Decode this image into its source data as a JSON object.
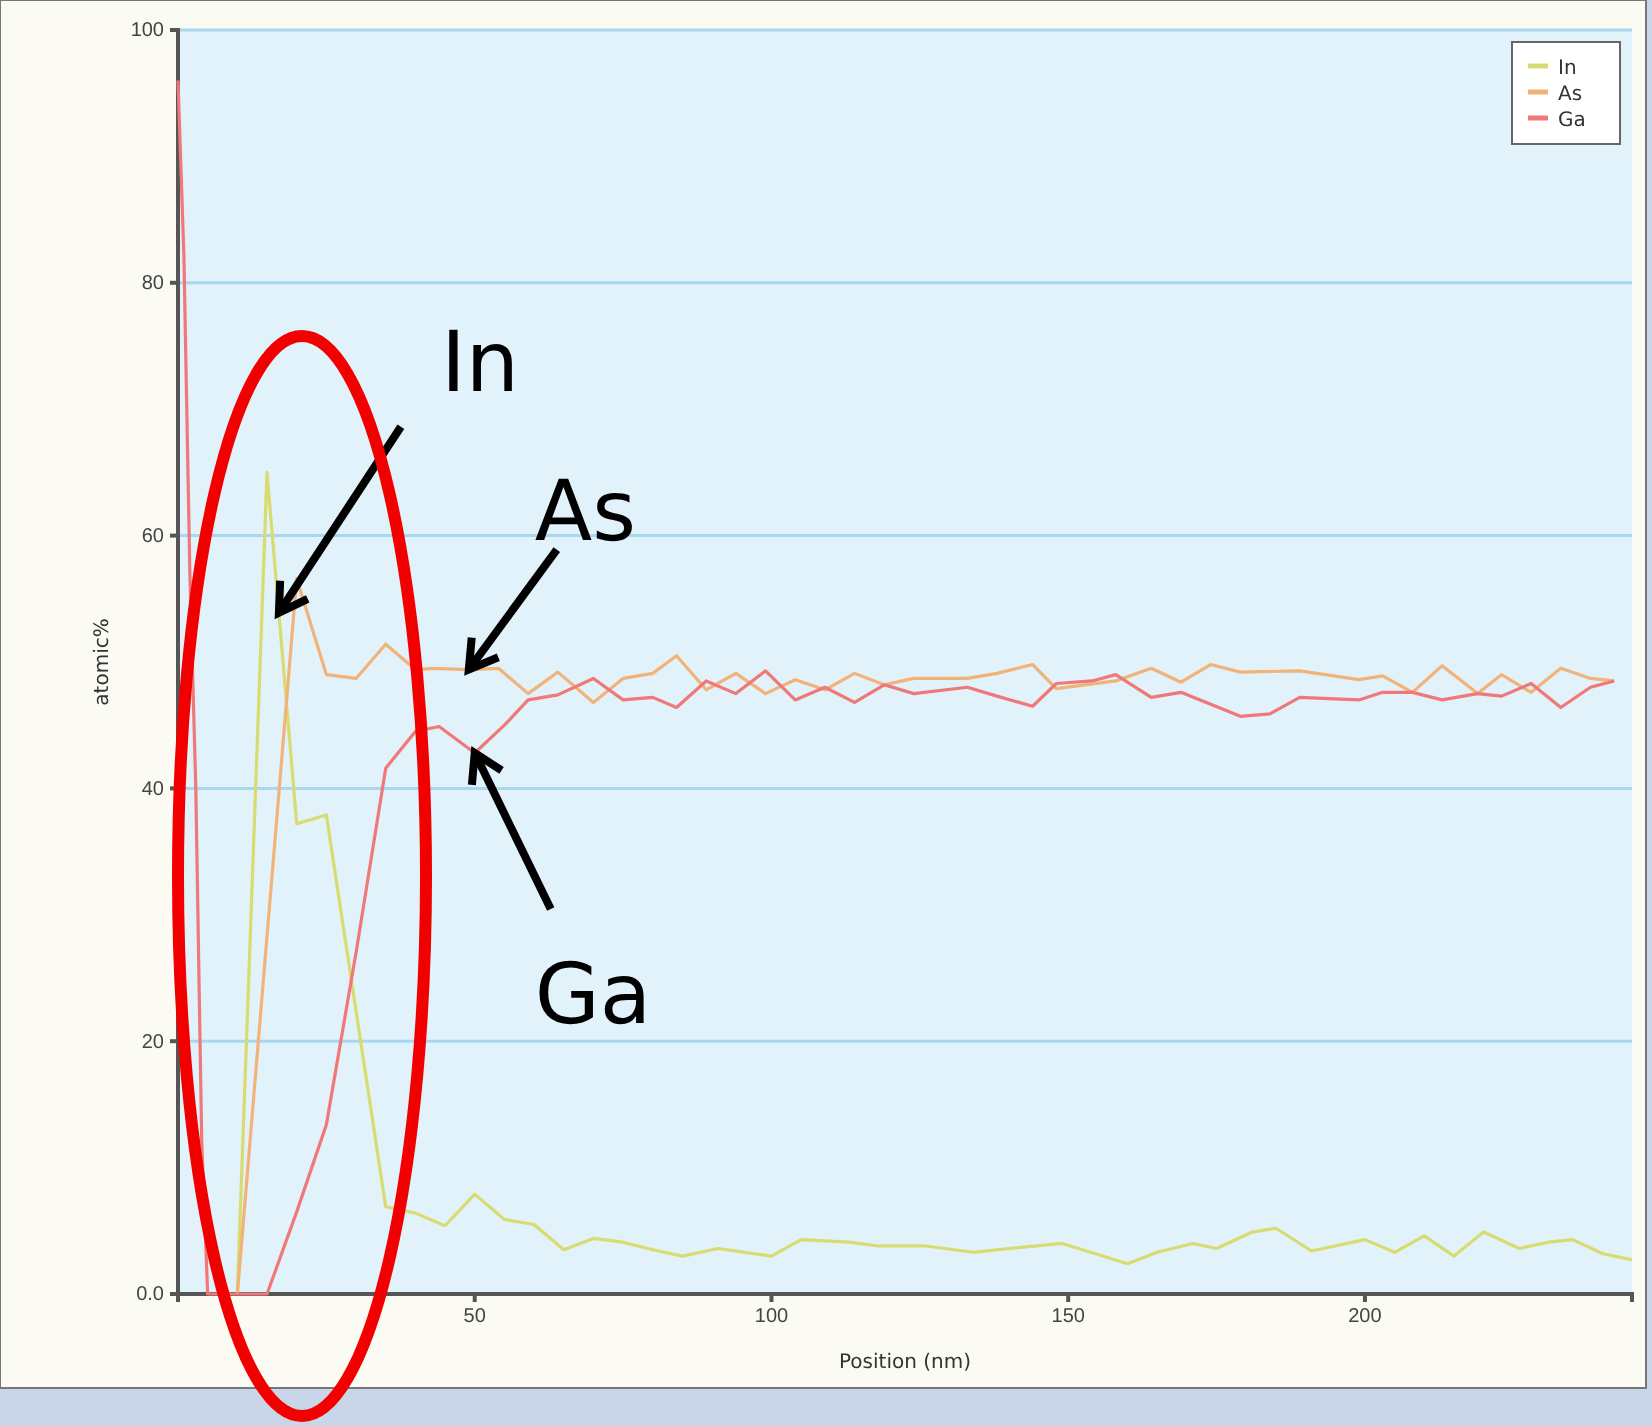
{
  "chart_data": {
    "type": "line",
    "xlabel": "Position (nm)",
    "ylabel": "atomic%",
    "xlim": [
      0,
      245
    ],
    "xticks": [
      50,
      100,
      150,
      200
    ],
    "ylim": [
      0,
      100
    ],
    "yticks": [
      {
        "value": 0,
        "label": "0.0"
      },
      20,
      40,
      60,
      80,
      100
    ],
    "grid": "y",
    "legend": "top right",
    "marker": "none",
    "line_style": "solid",
    "series": [
      {
        "name": "In",
        "color": "#d8dc70",
        "x": [
          10,
          15,
          20,
          25,
          35,
          40,
          45,
          50,
          55,
          60,
          65,
          70,
          75,
          80,
          85,
          91,
          100,
          105,
          113,
          118,
          126,
          134,
          140,
          149,
          160,
          165,
          171,
          175,
          181,
          185,
          191,
          200,
          205,
          210,
          215,
          220,
          226,
          231,
          235,
          240,
          245
        ],
        "values": [
          0,
          65,
          37.2,
          37.9,
          6.9,
          6.4,
          5.4,
          7.9,
          5.9,
          5.5,
          3.5,
          4.4,
          4.1,
          3.5,
          3,
          3.6,
          3,
          4.3,
          4.1,
          3.8,
          3.8,
          3.3,
          3.6,
          4,
          2.4,
          3.3,
          4,
          3.6,
          4.9,
          5.2,
          3.4,
          4.3,
          3.3,
          4.6,
          3,
          4.9,
          3.6,
          4.1,
          4.3,
          3.2,
          2.7
        ]
      },
      {
        "name": "As",
        "color": "#f2b378",
        "x": [
          10,
          20,
          25,
          30,
          35,
          40,
          43,
          49,
          54,
          59,
          64,
          70,
          75,
          80,
          84,
          89,
          94,
          99,
          104,
          109,
          114,
          119,
          124,
          133,
          138,
          144,
          148,
          158,
          164,
          169,
          174,
          179,
          189,
          199,
          203,
          208,
          213,
          219,
          223,
          228,
          233,
          238,
          242
        ],
        "values": [
          0,
          56.6,
          49,
          48.7,
          51.4,
          49.4,
          49.5,
          49.4,
          49.5,
          47.5,
          49.2,
          46.8,
          48.7,
          49.1,
          50.5,
          47.8,
          49.1,
          47.5,
          48.6,
          47.8,
          49.1,
          48.2,
          48.7,
          48.7,
          49.1,
          49.8,
          47.9,
          48.5,
          49.5,
          48.4,
          49.8,
          49.2,
          49.3,
          48.6,
          48.9,
          47.6,
          49.7,
          47.5,
          49,
          47.6,
          49.5,
          48.7,
          48.5
        ]
      },
      {
        "name": "Ga",
        "color": "#f07878",
        "x": [
          0,
          1,
          2,
          3,
          4,
          5,
          10,
          15,
          20,
          25,
          30,
          35,
          40,
          44,
          50,
          55,
          59,
          64,
          70,
          75,
          80,
          84,
          89,
          94,
          99,
          104,
          109,
          114,
          119,
          124,
          133,
          138,
          144,
          148,
          154,
          158,
          164,
          169,
          179,
          184,
          189,
          199,
          203,
          208,
          213,
          219,
          223,
          228,
          233,
          238,
          242
        ],
        "values": [
          96,
          82,
          57,
          40,
          12,
          0,
          0,
          0,
          6.5,
          13.4,
          27,
          41.6,
          44.5,
          44.9,
          42.8,
          45,
          47,
          47.4,
          48.7,
          47,
          47.2,
          46.4,
          48.5,
          47.5,
          49.3,
          47,
          48,
          46.8,
          48.2,
          47.5,
          48,
          47.3,
          46.5,
          48.3,
          48.5,
          49,
          47.2,
          47.6,
          45.7,
          45.9,
          47.2,
          47,
          47.6,
          47.6,
          47,
          47.5,
          47.3,
          48.3,
          46.4,
          48,
          48.5
        ]
      }
    ],
    "annotations": [
      {
        "text": "In",
        "x": 17,
        "y": 53.9
      },
      {
        "text": "As",
        "x": 49,
        "y": 49.4
      },
      {
        "text": "Ga",
        "x": 50,
        "y": 42.8
      }
    ]
  }
}
